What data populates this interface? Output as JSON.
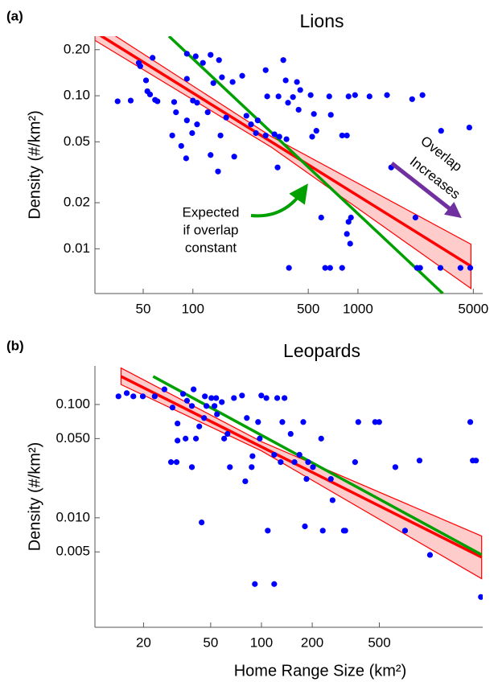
{
  "chart_data": [
    {
      "type": "scatter",
      "panel_label": "(a)",
      "title": "Lions",
      "y_label": "Density (#/km²)",
      "log_x": true,
      "log_y": true,
      "xlim": [
        25.5,
        5700
      ],
      "ylim": [
        0.0051,
        0.245
      ],
      "xticks": [
        50,
        100,
        500,
        1000,
        5000
      ],
      "yticks": [
        {
          "value": 0.2,
          "label": "0.20"
        },
        {
          "value": 0.1,
          "label": "0.10"
        },
        0.05,
        0.02,
        0.01
      ],
      "points": {
        "color": "#0000ff",
        "x": [
          35,
          47,
          48,
          52,
          53,
          55,
          57,
          59,
          61,
          42,
          92,
          104,
          115,
          92,
          77,
          79,
          92,
          106,
          106,
          99,
          128,
          133,
          144,
          150,
          174,
          199,
          100,
          123,
          128,
          142,
          85,
          91,
          75,
          178,
          211,
          225,
          241,
          276,
          312,
          334,
          369,
          326,
          276,
          353,
          365,
          377,
          517,
          541,
          528,
          560,
          599,
          670,
          685,
          802,
          857,
          877,
          907,
          877,
          857,
          897,
          960,
          1175,
          1500,
          1590,
          2130,
          2230,
          2280,
          2380,
          2460,
          3160,
          3190,
          4730,
          4790,
          4180,
          382,
          633,
          678,
          802,
          147,
          159,
          330,
          247,
          404,
          427,
          447,
          437,
          282
        ],
        "y": [
          0.092,
          0.164,
          0.156,
          0.126,
          0.107,
          0.102,
          0.177,
          0.094,
          0.092,
          0.093,
          0.188,
          0.181,
          0.164,
          0.129,
          0.091,
          0.078,
          0.069,
          0.09,
          0.065,
          0.057,
          0.185,
          0.121,
          0.171,
          0.132,
          0.123,
          0.135,
          0.093,
          0.078,
          0.041,
          0.032,
          0.047,
          0.039,
          0.055,
          0.04,
          0.074,
          0.065,
          0.057,
          0.055,
          0.056,
          0.054,
          0.052,
          0.034,
          0.147,
          0.171,
          0.126,
          0.09,
          0.101,
          0.076,
          0.054,
          0.059,
          0.016,
          0.099,
          0.075,
          0.055,
          0.055,
          0.099,
          0.016,
          0.015,
          0.0125,
          0.0108,
          0.101,
          0.099,
          0.101,
          0.034,
          0.095,
          0.016,
          0.0075,
          0.0075,
          0.101,
          0.0075,
          0.059,
          0.062,
          0.0075,
          0.0075,
          0.0075,
          0.0075,
          0.0075,
          0.0075,
          0.055,
          0.072,
          0.099,
          0.069,
          0.098,
          0.123,
          0.109,
          0.081,
          0.099
        ]
      },
      "confidence_band": {
        "color": "#ff0000",
        "x": [
          25.5,
          300,
          4840
        ],
        "upper": [
          0.3,
          0.054,
          0.0107
        ],
        "lower": [
          0.23,
          0.046,
          0.0055
        ]
      },
      "fit_line": {
        "color": "#ff0000",
        "x": [
          25.5,
          4840
        ],
        "y": [
          0.261,
          0.0077
        ]
      },
      "expected_line": {
        "color": "#00a000",
        "x": [
          71.6,
          3270
        ],
        "y": [
          0.245,
          0.0051
        ]
      },
      "expected_label": [
        "Expected",
        "if overlap",
        "constant"
      ],
      "overlap_label": [
        "Overlap",
        "Increases"
      ]
    },
    {
      "type": "scatter",
      "panel_label": "(b)",
      "title": "Leopards",
      "y_label": "Density (#/km²)",
      "x_label": "Home Range Size (km²)",
      "log_x": true,
      "log_y": true,
      "xlim": [
        10.3,
        2050
      ],
      "ylim": [
        0.00108,
        0.219
      ],
      "xticks": [
        20,
        50,
        100,
        200,
        500
      ],
      "yticks": [
        {
          "value": 0.1,
          "label": "0.100"
        },
        {
          "value": 0.05,
          "label": "0.050"
        },
        {
          "value": 0.01,
          "label": "0.010"
        },
        0.005
      ],
      "points": {
        "color": "#0000ff",
        "x": [
          14.2,
          15.9,
          17.4,
          19.8,
          23.3,
          26.6,
          29.7,
          29.1,
          31.4,
          31.8,
          31.8,
          34.3,
          36.2,
          38.7,
          39.6,
          35.5,
          38.7,
          40.9,
          42.8,
          44.2,
          45.7,
          46.2,
          47.2,
          50.5,
          52.7,
          53.9,
          54.5,
          58.2,
          60.1,
          62.9,
          65,
          68.7,
          76.7,
          80.2,
          81.9,
          87.5,
          88.5,
          91.4,
          95.5,
          97.7,
          99.8,
          107,
          109,
          119,
          119,
          124,
          130,
          133,
          137,
          149,
          157,
          168,
          177,
          181,
          185,
          189,
          202,
          226,
          231,
          258,
          264,
          308,
          314,
          359,
          375,
          472,
          499,
          622,
          710,
          865,
          998,
          1730,
          1790,
          1870,
          2000
        ],
        "y": [
          0.118,
          0.126,
          0.118,
          0.118,
          0.118,
          0.136,
          0.094,
          0.031,
          0.031,
          0.068,
          0.048,
          0.124,
          0.108,
          0.097,
          0.136,
          0.05,
          0.028,
          0.05,
          0.064,
          0.0091,
          0.076,
          0.118,
          0.097,
          0.114,
          0.097,
          0.114,
          0.082,
          0.105,
          0.05,
          0.055,
          0.028,
          0.114,
          0.12,
          0.021,
          0.076,
          0.028,
          0.035,
          0.0026,
          0.07,
          0.05,
          0.12,
          0.114,
          0.0077,
          0.0026,
          0.036,
          0.114,
          0.031,
          0.07,
          0.114,
          0.055,
          0.031,
          0.036,
          0.07,
          0.0084,
          0.022,
          0.031,
          0.028,
          0.05,
          0.0077,
          0.022,
          0.0143,
          0.0077,
          0.0077,
          0.031,
          0.07,
          0.07,
          0.07,
          0.028,
          0.0077,
          0.032,
          0.0047,
          0.07,
          0.032,
          0.032,
          0.002
        ]
      },
      "confidence_band": {
        "color": "#ff0000",
        "x": [
          14.7,
          100,
          2020
        ],
        "upper": [
          0.21,
          0.047,
          0.0069
        ],
        "lower": [
          0.15,
          0.039,
          0.0029
        ]
      },
      "fit_line": {
        "color": "#ff0000",
        "x": [
          14.7,
          2020
        ],
        "y": [
          0.177,
          0.00449
        ]
      },
      "expected_line": {
        "color": "#00a000",
        "x": [
          22.8,
          2020
        ],
        "y": [
          0.177,
          0.00472
        ]
      }
    }
  ]
}
